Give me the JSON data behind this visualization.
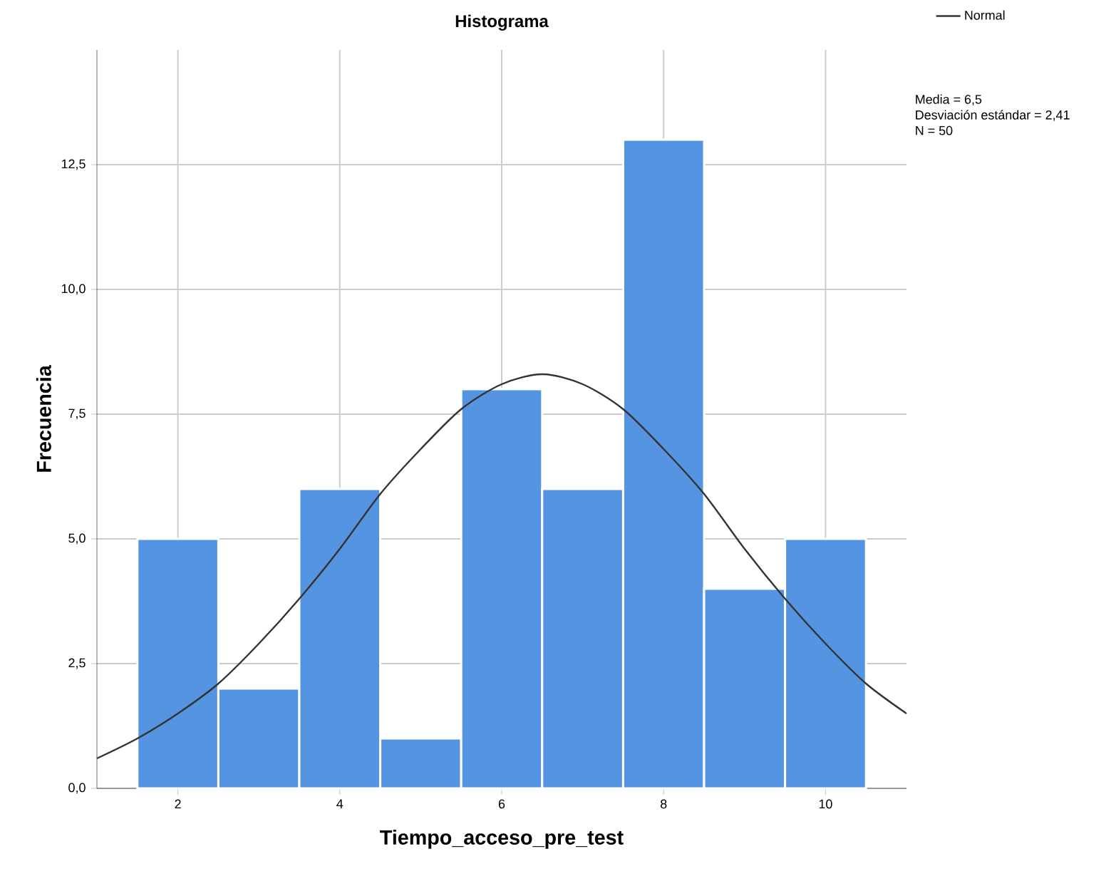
{
  "chart_data": {
    "type": "histogram",
    "title": "Histograma",
    "xlabel": "Tiempo_acceso_pre_test",
    "ylabel": "Frecuencia",
    "bins": [
      1.5,
      2.5,
      3.5,
      4.5,
      5.5,
      6.5,
      7.5,
      8.5,
      9.5,
      10.5
    ],
    "series": [
      {
        "color": "#5494e0",
        "values": [
          5,
          2,
          6,
          1,
          8,
          6,
          13,
          4,
          5
        ]
      },
      {
        "type": "line",
        "name": "Normal",
        "color": "#333333",
        "x": [
          1,
          1.5,
          2,
          2.5,
          3,
          3.5,
          4,
          4.5,
          5,
          5.5,
          6,
          6.5,
          7,
          7.5,
          8,
          8.5,
          9,
          9.5,
          10,
          10.5,
          11
        ],
        "values": [
          0.6,
          1.0,
          1.5,
          2.1,
          2.9,
          3.8,
          4.8,
          5.9,
          6.8,
          7.6,
          8.1,
          8.3,
          8.1,
          7.6,
          6.8,
          5.9,
          4.8,
          3.8,
          2.9,
          2.1,
          1.5
        ]
      }
    ],
    "xlim": [
      1,
      11
    ],
    "ylim": [
      0,
      14.8
    ],
    "xticks": [
      2,
      4,
      6,
      8,
      10
    ],
    "yticks": [
      {
        "value": 0,
        "label": "0,0"
      },
      {
        "value": 2.5,
        "label": "2,5"
      },
      {
        "value": 5,
        "label": "5,0"
      },
      {
        "value": 7.5,
        "label": "7,5"
      },
      {
        "value": 10,
        "label": "10,0"
      },
      {
        "value": 12.5,
        "label": "12,5"
      }
    ],
    "grid": true,
    "legend": "top right",
    "annotations": [
      "Media = 6,5",
      "Desviación estándar = 2,41",
      "N = 50"
    ]
  }
}
